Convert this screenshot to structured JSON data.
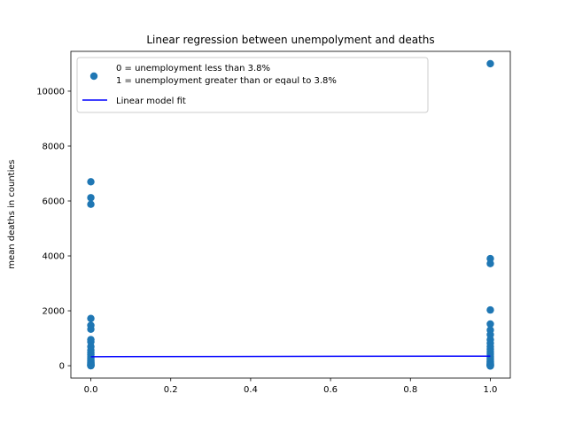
{
  "chart_data": {
    "type": "scatter",
    "title": "Linear regression between unempolyment and deaths",
    "xlabel": "",
    "ylabel": "mean deaths in counties",
    "xlim": [
      -0.05,
      1.05
    ],
    "ylim": [
      -450,
      11450
    ],
    "x_ticks": [
      0.0,
      0.2,
      0.4,
      0.6,
      0.8,
      1.0
    ],
    "x_tick_labels": [
      "0.0",
      "0.2",
      "0.4",
      "0.6",
      "0.8",
      "1.0"
    ],
    "y_ticks": [
      0,
      2000,
      4000,
      6000,
      8000,
      10000
    ],
    "y_tick_labels": [
      "0",
      "2000",
      "4000",
      "6000",
      "8000",
      "10000"
    ],
    "grid": false,
    "legend_position": "upper-left",
    "series": [
      {
        "name": "0 = unemployment less than 3.8%\n1 = unemployment greater than or eqaul to 3.8%",
        "legend_lines": [
          "0 = unemployment less than 3.8%",
          "1 = unemployment greater than or eqaul to 3.8%"
        ],
        "kind": "scatter",
        "color": "#1f77b4",
        "x": [
          0,
          0,
          0,
          0,
          0,
          0,
          0,
          0,
          0,
          0,
          0,
          0,
          0,
          0,
          0,
          0,
          0,
          0,
          0,
          0,
          0,
          0,
          0,
          0,
          0,
          0,
          0,
          0,
          1,
          1,
          1,
          1,
          1,
          1,
          1,
          1,
          1,
          1,
          1,
          1,
          1,
          1,
          1,
          1,
          1,
          1,
          1,
          1,
          1,
          1,
          1,
          1,
          1,
          1,
          1,
          1,
          1,
          1
        ],
        "y": [
          6700,
          6120,
          5880,
          1720,
          1470,
          1330,
          950,
          870,
          700,
          570,
          470,
          400,
          330,
          270,
          220,
          180,
          150,
          120,
          100,
          80,
          60,
          40,
          30,
          20,
          10,
          5,
          2,
          0,
          11000,
          3900,
          3720,
          2030,
          1520,
          1300,
          1130,
          950,
          820,
          700,
          600,
          500,
          420,
          350,
          290,
          240,
          200,
          160,
          130,
          100,
          80,
          60,
          45,
          30,
          20,
          10,
          5,
          0,
          -5,
          -10
        ]
      },
      {
        "name": "Linear model fit",
        "kind": "line",
        "color": "#0000ff",
        "x": [
          0,
          1
        ],
        "y": [
          330,
          350
        ]
      }
    ]
  }
}
